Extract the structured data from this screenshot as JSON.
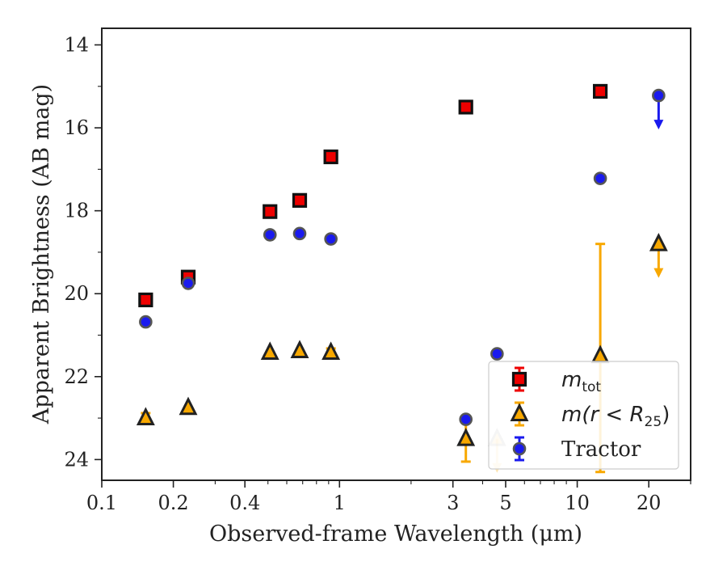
{
  "chart_data": {
    "type": "scatter",
    "title": "",
    "xlabel": "Observed-frame Wavelength (μm)",
    "ylabel": "Apparent Brightness (AB mag)",
    "x_scale": "log",
    "xlim": [
      0.1,
      30
    ],
    "ylim": [
      24.5,
      13.6
    ],
    "y_inverted": true,
    "x_ticks": [
      {
        "value": 0.1,
        "label": "0.1"
      },
      {
        "value": 0.2,
        "label": "0.2"
      },
      {
        "value": 0.4,
        "label": "0.4"
      },
      {
        "value": 1,
        "label": "1"
      },
      {
        "value": 3,
        "label": "3"
      },
      {
        "value": 5,
        "label": "5"
      },
      {
        "value": 10,
        "label": "10"
      },
      {
        "value": 20,
        "label": "20"
      }
    ],
    "y_ticks": [
      {
        "value": 14,
        "label": "14"
      },
      {
        "value": 16,
        "label": "16"
      },
      {
        "value": 18,
        "label": "18"
      },
      {
        "value": 20,
        "label": "20"
      },
      {
        "value": 22,
        "label": "22"
      },
      {
        "value": 24,
        "label": "24"
      }
    ],
    "grid": false,
    "legend_position": "lower-right",
    "series": [
      {
        "key": "mtot",
        "name": "m_tot",
        "legend_main": "m",
        "legend_sub": "tot",
        "marker": "square",
        "color": "#ee0000",
        "edge": "#111111",
        "points": [
          {
            "x": 0.153,
            "y": 20.15
          },
          {
            "x": 0.231,
            "y": 19.6
          },
          {
            "x": 0.51,
            "y": 18.02
          },
          {
            "x": 0.68,
            "y": 17.75
          },
          {
            "x": 0.92,
            "y": 16.7
          },
          {
            "x": 3.4,
            "y": 15.5
          },
          {
            "x": 12.5,
            "y": 15.12
          }
        ]
      },
      {
        "key": "mr25",
        "name": "m(r < R25)",
        "legend_main": "m(r < R",
        "legend_sub": "25",
        "legend_end": ")",
        "marker": "triangle",
        "color": "#f8a800",
        "edge": "#222222",
        "points": [
          {
            "x": 0.153,
            "y": 23.0,
            "err": 0.12
          },
          {
            "x": 0.231,
            "y": 22.75
          },
          {
            "x": 0.51,
            "y": 21.42
          },
          {
            "x": 0.68,
            "y": 21.38
          },
          {
            "x": 0.92,
            "y": 21.42,
            "err": 0.1
          },
          {
            "x": 3.4,
            "y": 23.5,
            "err": 0.55
          },
          {
            "x": 4.6,
            "y": 23.5,
            "upper_limit": true,
            "faded": true
          },
          {
            "x": 12.5,
            "y": 21.5,
            "err_low": 2.7,
            "err_high": 2.8
          },
          {
            "x": 22.0,
            "y": 18.8,
            "upper_limit": true
          }
        ]
      },
      {
        "key": "tractor",
        "name": "Tractor",
        "legend_main": "Tractor",
        "marker": "circle",
        "color": "#1a1aee",
        "edge": "#555555",
        "points": [
          {
            "x": 0.153,
            "y": 20.68
          },
          {
            "x": 0.231,
            "y": 19.75
          },
          {
            "x": 0.51,
            "y": 18.58
          },
          {
            "x": 0.68,
            "y": 18.55
          },
          {
            "x": 0.92,
            "y": 18.68
          },
          {
            "x": 3.4,
            "y": 23.03
          },
          {
            "x": 4.6,
            "y": 21.45
          },
          {
            "x": 12.5,
            "y": 17.22
          },
          {
            "x": 22.0,
            "y": 15.22,
            "upper_limit": true
          }
        ]
      }
    ]
  }
}
